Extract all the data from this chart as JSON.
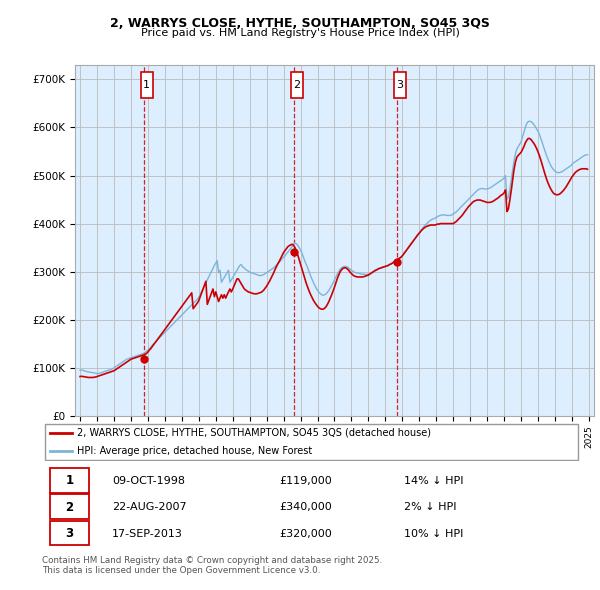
{
  "title_line1": "2, WARRYS CLOSE, HYTHE, SOUTHAMPTON, SO45 3QS",
  "title_line2": "Price paid vs. HM Land Registry's House Price Index (HPI)",
  "ylim": [
    0,
    730000
  ],
  "yticks": [
    0,
    100000,
    200000,
    300000,
    400000,
    500000,
    600000,
    700000
  ],
  "ytick_labels": [
    "£0",
    "£100K",
    "£200K",
    "£300K",
    "£400K",
    "£500K",
    "£600K",
    "£700K"
  ],
  "hpi_color": "#7ab5d8",
  "price_color": "#cc0000",
  "vline_color": "#cc0000",
  "grid_color": "#bbbbbb",
  "chart_bg": "#ddeeff",
  "transactions": [
    {
      "num": 1,
      "date_str": "09-OCT-1998",
      "year": 1998.78,
      "price": 119000,
      "hpi_pct": "14% ↓ HPI"
    },
    {
      "num": 2,
      "date_str": "22-AUG-2007",
      "year": 2007.64,
      "price": 340000,
      "hpi_pct": "2% ↓ HPI"
    },
    {
      "num": 3,
      "date_str": "17-SEP-2013",
      "year": 2013.71,
      "price": 320000,
      "hpi_pct": "10% ↓ HPI"
    }
  ],
  "legend_label_price": "2, WARRYS CLOSE, HYTHE, SOUTHAMPTON, SO45 3QS (detached house)",
  "legend_label_hpi": "HPI: Average price, detached house, New Forest",
  "footnote": "Contains HM Land Registry data © Crown copyright and database right 2025.\nThis data is licensed under the Open Government Licence v3.0.",
  "hpi_data_years": [
    1995.0,
    1995.083,
    1995.167,
    1995.25,
    1995.333,
    1995.417,
    1995.5,
    1995.583,
    1995.667,
    1995.75,
    1995.833,
    1995.917,
    1996.0,
    1996.083,
    1996.167,
    1996.25,
    1996.333,
    1996.417,
    1996.5,
    1996.583,
    1996.667,
    1996.75,
    1996.833,
    1996.917,
    1997.0,
    1997.083,
    1997.167,
    1997.25,
    1997.333,
    1997.417,
    1997.5,
    1997.583,
    1997.667,
    1997.75,
    1997.833,
    1997.917,
    1998.0,
    1998.083,
    1998.167,
    1998.25,
    1998.333,
    1998.417,
    1998.5,
    1998.583,
    1998.667,
    1998.75,
    1998.833,
    1998.917,
    1999.0,
    1999.083,
    1999.167,
    1999.25,
    1999.333,
    1999.417,
    1999.5,
    1999.583,
    1999.667,
    1999.75,
    1999.833,
    1999.917,
    2000.0,
    2000.083,
    2000.167,
    2000.25,
    2000.333,
    2000.417,
    2000.5,
    2000.583,
    2000.667,
    2000.75,
    2000.833,
    2000.917,
    2001.0,
    2001.083,
    2001.167,
    2001.25,
    2001.333,
    2001.417,
    2001.5,
    2001.583,
    2001.667,
    2001.75,
    2001.833,
    2001.917,
    2002.0,
    2002.083,
    2002.167,
    2002.25,
    2002.333,
    2002.417,
    2002.5,
    2002.583,
    2002.667,
    2002.75,
    2002.833,
    2002.917,
    2003.0,
    2003.083,
    2003.167,
    2003.25,
    2003.333,
    2003.417,
    2003.5,
    2003.583,
    2003.667,
    2003.75,
    2003.833,
    2003.917,
    2004.0,
    2004.083,
    2004.167,
    2004.25,
    2004.333,
    2004.417,
    2004.5,
    2004.583,
    2004.667,
    2004.75,
    2004.833,
    2004.917,
    2005.0,
    2005.083,
    2005.167,
    2005.25,
    2005.333,
    2005.417,
    2005.5,
    2005.583,
    2005.667,
    2005.75,
    2005.833,
    2005.917,
    2006.0,
    2006.083,
    2006.167,
    2006.25,
    2006.333,
    2006.417,
    2006.5,
    2006.583,
    2006.667,
    2006.75,
    2006.833,
    2006.917,
    2007.0,
    2007.083,
    2007.167,
    2007.25,
    2007.333,
    2007.417,
    2007.5,
    2007.583,
    2007.667,
    2007.75,
    2007.833,
    2007.917,
    2008.0,
    2008.083,
    2008.167,
    2008.25,
    2008.333,
    2008.417,
    2008.5,
    2008.583,
    2008.667,
    2008.75,
    2008.833,
    2008.917,
    2009.0,
    2009.083,
    2009.167,
    2009.25,
    2009.333,
    2009.417,
    2009.5,
    2009.583,
    2009.667,
    2009.75,
    2009.833,
    2009.917,
    2010.0,
    2010.083,
    2010.167,
    2010.25,
    2010.333,
    2010.417,
    2010.5,
    2010.583,
    2010.667,
    2010.75,
    2010.833,
    2010.917,
    2011.0,
    2011.083,
    2011.167,
    2011.25,
    2011.333,
    2011.417,
    2011.5,
    2011.583,
    2011.667,
    2011.75,
    2011.833,
    2011.917,
    2012.0,
    2012.083,
    2012.167,
    2012.25,
    2012.333,
    2012.417,
    2012.5,
    2012.583,
    2012.667,
    2012.75,
    2012.833,
    2012.917,
    2013.0,
    2013.083,
    2013.167,
    2013.25,
    2013.333,
    2013.417,
    2013.5,
    2013.583,
    2013.667,
    2013.75,
    2013.833,
    2013.917,
    2014.0,
    2014.083,
    2014.167,
    2014.25,
    2014.333,
    2014.417,
    2014.5,
    2014.583,
    2014.667,
    2014.75,
    2014.833,
    2014.917,
    2015.0,
    2015.083,
    2015.167,
    2015.25,
    2015.333,
    2015.417,
    2015.5,
    2015.583,
    2015.667,
    2015.75,
    2015.833,
    2015.917,
    2016.0,
    2016.083,
    2016.167,
    2016.25,
    2016.333,
    2016.417,
    2016.5,
    2016.583,
    2016.667,
    2016.75,
    2016.833,
    2016.917,
    2017.0,
    2017.083,
    2017.167,
    2017.25,
    2017.333,
    2017.417,
    2017.5,
    2017.583,
    2017.667,
    2017.75,
    2017.833,
    2017.917,
    2018.0,
    2018.083,
    2018.167,
    2018.25,
    2018.333,
    2018.417,
    2018.5,
    2018.583,
    2018.667,
    2018.75,
    2018.833,
    2018.917,
    2019.0,
    2019.083,
    2019.167,
    2019.25,
    2019.333,
    2019.417,
    2019.5,
    2019.583,
    2019.667,
    2019.75,
    2019.833,
    2019.917,
    2020.0,
    2020.083,
    2020.167,
    2020.25,
    2020.333,
    2020.417,
    2020.5,
    2020.583,
    2020.667,
    2020.75,
    2020.833,
    2020.917,
    2021.0,
    2021.083,
    2021.167,
    2021.25,
    2021.333,
    2021.417,
    2021.5,
    2021.583,
    2021.667,
    2021.75,
    2021.833,
    2021.917,
    2022.0,
    2022.083,
    2022.167,
    2022.25,
    2022.333,
    2022.417,
    2022.5,
    2022.583,
    2022.667,
    2022.75,
    2022.833,
    2022.917,
    2023.0,
    2023.083,
    2023.167,
    2023.25,
    2023.333,
    2023.417,
    2023.5,
    2023.583,
    2023.667,
    2023.75,
    2023.833,
    2023.917,
    2024.0,
    2024.083,
    2024.167,
    2024.25,
    2024.333,
    2024.417,
    2024.5,
    2024.583,
    2024.667,
    2024.75,
    2024.833,
    2024.917
  ],
  "hpi_data_vals": [
    95000,
    95500,
    95000,
    94000,
    93000,
    92000,
    91500,
    91000,
    90500,
    90000,
    89500,
    89000,
    88000,
    88500,
    89000,
    90000,
    91000,
    92000,
    93000,
    94000,
    95000,
    96000,
    97000,
    98000,
    100000,
    102000,
    104000,
    106000,
    108000,
    110000,
    112000,
    114000,
    116000,
    118000,
    119000,
    120000,
    121000,
    122000,
    123000,
    124000,
    125000,
    126000,
    127000,
    128000,
    129000,
    130000,
    132000,
    134000,
    137000,
    140000,
    143000,
    147000,
    150000,
    153000,
    156000,
    159000,
    162000,
    165000,
    168000,
    171000,
    174000,
    177000,
    180000,
    183000,
    186000,
    189000,
    192000,
    195000,
    198000,
    201000,
    204000,
    207000,
    210000,
    213000,
    216000,
    219000,
    222000,
    225000,
    228000,
    231000,
    234000,
    237000,
    240000,
    243000,
    247000,
    253000,
    259000,
    265000,
    271000,
    277000,
    283000,
    289000,
    295000,
    301000,
    307000,
    313000,
    318000,
    323000,
    298000,
    303000,
    278000,
    283000,
    288000,
    293000,
    298000,
    303000,
    278000,
    283000,
    288000,
    293000,
    298000,
    303000,
    308000,
    313000,
    315000,
    310000,
    308000,
    305000,
    303000,
    301000,
    299000,
    298000,
    297000,
    296000,
    295000,
    294000,
    293000,
    292000,
    292000,
    293000,
    294000,
    296000,
    298000,
    300000,
    302000,
    304000,
    306000,
    308000,
    311000,
    314000,
    317000,
    320000,
    323000,
    327000,
    330000,
    333000,
    337000,
    341000,
    344000,
    348000,
    353000,
    357000,
    360000,
    358000,
    355000,
    350000,
    345000,
    338000,
    330000,
    322000,
    315000,
    308000,
    300000,
    292000,
    285000,
    278000,
    272000,
    266000,
    261000,
    257000,
    254000,
    252000,
    251000,
    252000,
    254000,
    257000,
    261000,
    266000,
    271000,
    277000,
    283000,
    289000,
    295000,
    300000,
    305000,
    308000,
    310000,
    311000,
    311000,
    310000,
    308000,
    305000,
    303000,
    301000,
    299000,
    298000,
    297000,
    297000,
    296000,
    295000,
    295000,
    295000,
    294000,
    294000,
    295000,
    296000,
    297000,
    299000,
    300000,
    302000,
    304000,
    306000,
    307000,
    308000,
    309000,
    310000,
    311000,
    312000,
    313000,
    315000,
    316000,
    318000,
    320000,
    322000,
    324000,
    326000,
    328000,
    330000,
    333000,
    337000,
    341000,
    345000,
    349000,
    353000,
    357000,
    361000,
    365000,
    369000,
    373000,
    377000,
    381000,
    385000,
    389000,
    393000,
    396000,
    399000,
    402000,
    405000,
    407000,
    409000,
    410000,
    411000,
    413000,
    415000,
    416000,
    417000,
    418000,
    418000,
    418000,
    417000,
    417000,
    417000,
    417000,
    418000,
    420000,
    422000,
    424000,
    427000,
    430000,
    433000,
    436000,
    439000,
    442000,
    445000,
    448000,
    451000,
    454000,
    457000,
    460000,
    463000,
    466000,
    469000,
    471000,
    472000,
    473000,
    473000,
    472000,
    472000,
    472000,
    473000,
    474000,
    476000,
    478000,
    480000,
    482000,
    484000,
    486000,
    488000,
    490000,
    492000,
    495000,
    500000,
    450000,
    455000,
    470000,
    490000,
    510000,
    530000,
    545000,
    555000,
    560000,
    565000,
    570000,
    580000,
    590000,
    600000,
    608000,
    612000,
    613000,
    612000,
    610000,
    606000,
    602000,
    597000,
    592000,
    585000,
    577000,
    568000,
    559000,
    550000,
    542000,
    534000,
    527000,
    521000,
    516000,
    512000,
    509000,
    507000,
    506000,
    506000,
    507000,
    508000,
    510000,
    512000,
    514000,
    516000,
    518000,
    520000,
    523000,
    526000,
    528000,
    530000,
    532000,
    534000,
    536000,
    538000,
    540000,
    542000,
    543000,
    543000
  ],
  "price_data_years": [
    1995.0,
    1995.083,
    1995.167,
    1995.25,
    1995.333,
    1995.417,
    1995.5,
    1995.583,
    1995.667,
    1995.75,
    1995.833,
    1995.917,
    1996.0,
    1996.083,
    1996.167,
    1996.25,
    1996.333,
    1996.417,
    1996.5,
    1996.583,
    1996.667,
    1996.75,
    1996.833,
    1996.917,
    1997.0,
    1997.083,
    1997.167,
    1997.25,
    1997.333,
    1997.417,
    1997.5,
    1997.583,
    1997.667,
    1997.75,
    1997.833,
    1997.917,
    1998.0,
    1998.083,
    1998.167,
    1998.25,
    1998.333,
    1998.417,
    1998.5,
    1998.583,
    1998.667,
    1998.75,
    1998.833,
    1998.917,
    1999.0,
    1999.083,
    1999.167,
    1999.25,
    1999.333,
    1999.417,
    1999.5,
    1999.583,
    1999.667,
    1999.75,
    1999.833,
    1999.917,
    2000.0,
    2000.083,
    2000.167,
    2000.25,
    2000.333,
    2000.417,
    2000.5,
    2000.583,
    2000.667,
    2000.75,
    2000.833,
    2000.917,
    2001.0,
    2001.083,
    2001.167,
    2001.25,
    2001.333,
    2001.417,
    2001.5,
    2001.583,
    2001.667,
    2001.75,
    2001.833,
    2001.917,
    2002.0,
    2002.083,
    2002.167,
    2002.25,
    2002.333,
    2002.417,
    2002.5,
    2002.583,
    2002.667,
    2002.75,
    2002.833,
    2002.917,
    2003.0,
    2003.083,
    2003.167,
    2003.25,
    2003.333,
    2003.417,
    2003.5,
    2003.583,
    2003.667,
    2003.75,
    2003.833,
    2003.917,
    2004.0,
    2004.083,
    2004.167,
    2004.25,
    2004.333,
    2004.417,
    2004.5,
    2004.583,
    2004.667,
    2004.75,
    2004.833,
    2004.917,
    2005.0,
    2005.083,
    2005.167,
    2005.25,
    2005.333,
    2005.417,
    2005.5,
    2005.583,
    2005.667,
    2005.75,
    2005.833,
    2005.917,
    2006.0,
    2006.083,
    2006.167,
    2006.25,
    2006.333,
    2006.417,
    2006.5,
    2006.583,
    2006.667,
    2006.75,
    2006.833,
    2006.917,
    2007.0,
    2007.083,
    2007.167,
    2007.25,
    2007.333,
    2007.417,
    2007.5,
    2007.583,
    2007.667,
    2007.75,
    2007.833,
    2007.917,
    2008.0,
    2008.083,
    2008.167,
    2008.25,
    2008.333,
    2008.417,
    2008.5,
    2008.583,
    2008.667,
    2008.75,
    2008.833,
    2008.917,
    2009.0,
    2009.083,
    2009.167,
    2009.25,
    2009.333,
    2009.417,
    2009.5,
    2009.583,
    2009.667,
    2009.75,
    2009.833,
    2009.917,
    2010.0,
    2010.083,
    2010.167,
    2010.25,
    2010.333,
    2010.417,
    2010.5,
    2010.583,
    2010.667,
    2010.75,
    2010.833,
    2010.917,
    2011.0,
    2011.083,
    2011.167,
    2011.25,
    2011.333,
    2011.417,
    2011.5,
    2011.583,
    2011.667,
    2011.75,
    2011.833,
    2011.917,
    2012.0,
    2012.083,
    2012.167,
    2012.25,
    2012.333,
    2012.417,
    2012.5,
    2012.583,
    2012.667,
    2012.75,
    2012.833,
    2012.917,
    2013.0,
    2013.083,
    2013.167,
    2013.25,
    2013.333,
    2013.417,
    2013.5,
    2013.583,
    2013.667,
    2013.75,
    2013.833,
    2013.917,
    2014.0,
    2014.083,
    2014.167,
    2014.25,
    2014.333,
    2014.417,
    2014.5,
    2014.583,
    2014.667,
    2014.75,
    2014.833,
    2014.917,
    2015.0,
    2015.083,
    2015.167,
    2015.25,
    2015.333,
    2015.417,
    2015.5,
    2015.583,
    2015.667,
    2015.75,
    2015.833,
    2015.917,
    2016.0,
    2016.083,
    2016.167,
    2016.25,
    2016.333,
    2016.417,
    2016.5,
    2016.583,
    2016.667,
    2016.75,
    2016.833,
    2016.917,
    2017.0,
    2017.083,
    2017.167,
    2017.25,
    2017.333,
    2017.417,
    2017.5,
    2017.583,
    2017.667,
    2017.75,
    2017.833,
    2017.917,
    2018.0,
    2018.083,
    2018.167,
    2018.25,
    2018.333,
    2018.417,
    2018.5,
    2018.583,
    2018.667,
    2018.75,
    2018.833,
    2018.917,
    2019.0,
    2019.083,
    2019.167,
    2019.25,
    2019.333,
    2019.417,
    2019.5,
    2019.583,
    2019.667,
    2019.75,
    2019.833,
    2019.917,
    2020.0,
    2020.083,
    2020.167,
    2020.25,
    2020.333,
    2020.417,
    2020.5,
    2020.583,
    2020.667,
    2020.75,
    2020.833,
    2020.917,
    2021.0,
    2021.083,
    2021.167,
    2021.25,
    2021.333,
    2021.417,
    2021.5,
    2021.583,
    2021.667,
    2021.75,
    2021.833,
    2021.917,
    2022.0,
    2022.083,
    2022.167,
    2022.25,
    2022.333,
    2022.417,
    2022.5,
    2022.583,
    2022.667,
    2022.75,
    2022.833,
    2022.917,
    2023.0,
    2023.083,
    2023.167,
    2023.25,
    2023.333,
    2023.417,
    2023.5,
    2023.583,
    2023.667,
    2023.75,
    2023.833,
    2023.917,
    2024.0,
    2024.083,
    2024.167,
    2024.25,
    2024.333,
    2024.417,
    2024.5,
    2024.583,
    2024.667,
    2024.75,
    2024.833,
    2024.917
  ],
  "price_data_vals": [
    82000,
    82500,
    82000,
    81500,
    81000,
    80500,
    80000,
    80000,
    80000,
    80000,
    80500,
    81000,
    82000,
    83000,
    84000,
    85000,
    86000,
    87000,
    88000,
    89000,
    90000,
    91000,
    92000,
    93000,
    94000,
    96000,
    98000,
    100000,
    102000,
    104000,
    106000,
    108000,
    110000,
    112000,
    114000,
    116000,
    118000,
    119000,
    120000,
    121000,
    122000,
    123000,
    124000,
    125000,
    126000,
    127000,
    128000,
    130000,
    133000,
    137000,
    140000,
    144000,
    148000,
    152000,
    156000,
    160000,
    164000,
    168000,
    172000,
    176000,
    180000,
    184000,
    188000,
    192000,
    196000,
    200000,
    204000,
    208000,
    212000,
    216000,
    220000,
    224000,
    228000,
    232000,
    236000,
    240000,
    244000,
    248000,
    252000,
    256000,
    223000,
    227000,
    231000,
    235000,
    240000,
    248000,
    256000,
    264000,
    272000,
    280000,
    232000,
    240000,
    248000,
    256000,
    264000,
    248000,
    258000,
    248000,
    238000,
    245000,
    252000,
    245000,
    252000,
    245000,
    252000,
    258000,
    264000,
    258000,
    264000,
    271000,
    278000,
    285000,
    285000,
    280000,
    275000,
    270000,
    265000,
    262000,
    260000,
    258000,
    257000,
    256000,
    255000,
    254000,
    254000,
    254000,
    255000,
    256000,
    257000,
    259000,
    262000,
    266000,
    270000,
    275000,
    280000,
    286000,
    292000,
    298000,
    305000,
    311000,
    317000,
    322000,
    328000,
    334000,
    340000,
    344000,
    348000,
    352000,
    354000,
    356000,
    357000,
    355000,
    350000,
    343000,
    335000,
    325000,
    315000,
    305000,
    295000,
    285000,
    276000,
    268000,
    260000,
    253000,
    247000,
    241000,
    236000,
    232000,
    228000,
    225000,
    223000,
    222000,
    222000,
    224000,
    227000,
    232000,
    238000,
    245000,
    252000,
    260000,
    268000,
    277000,
    286000,
    293000,
    300000,
    304000,
    307000,
    308000,
    308000,
    306000,
    303000,
    299000,
    296000,
    293000,
    291000,
    290000,
    289000,
    289000,
    289000,
    289000,
    289000,
    290000,
    291000,
    292000,
    293000,
    295000,
    297000,
    299000,
    301000,
    303000,
    304000,
    306000,
    307000,
    308000,
    309000,
    310000,
    311000,
    312000,
    313000,
    315000,
    316000,
    318000,
    320000,
    322000,
    324000,
    326000,
    328000,
    330000,
    333000,
    337000,
    341000,
    345000,
    349000,
    353000,
    357000,
    361000,
    365000,
    369000,
    373000,
    377000,
    380000,
    384000,
    387000,
    390000,
    392000,
    394000,
    395000,
    396000,
    397000,
    397000,
    397000,
    397000,
    398000,
    399000,
    399000,
    400000,
    400000,
    400000,
    400000,
    400000,
    400000,
    400000,
    400000,
    400000,
    400000,
    402000,
    404000,
    407000,
    410000,
    413000,
    416000,
    420000,
    424000,
    428000,
    432000,
    436000,
    439000,
    442000,
    445000,
    447000,
    448000,
    449000,
    449000,
    449000,
    448000,
    447000,
    446000,
    445000,
    444000,
    444000,
    444000,
    445000,
    446000,
    448000,
    450000,
    452000,
    454000,
    457000,
    459000,
    461000,
    464000,
    470000,
    425000,
    430000,
    448000,
    468000,
    490000,
    512000,
    528000,
    538000,
    542000,
    545000,
    548000,
    554000,
    560000,
    568000,
    573000,
    577000,
    577000,
    575000,
    571000,
    567000,
    562000,
    556000,
    549000,
    541000,
    532000,
    522000,
    512000,
    502000,
    493000,
    485000,
    478000,
    472000,
    467000,
    463000,
    461000,
    460000,
    460000,
    461000,
    463000,
    466000,
    469000,
    473000,
    477000,
    482000,
    487000,
    492000,
    497000,
    501000,
    505000,
    508000,
    510000,
    512000,
    513000,
    514000,
    514000,
    514000,
    514000,
    513000
  ]
}
